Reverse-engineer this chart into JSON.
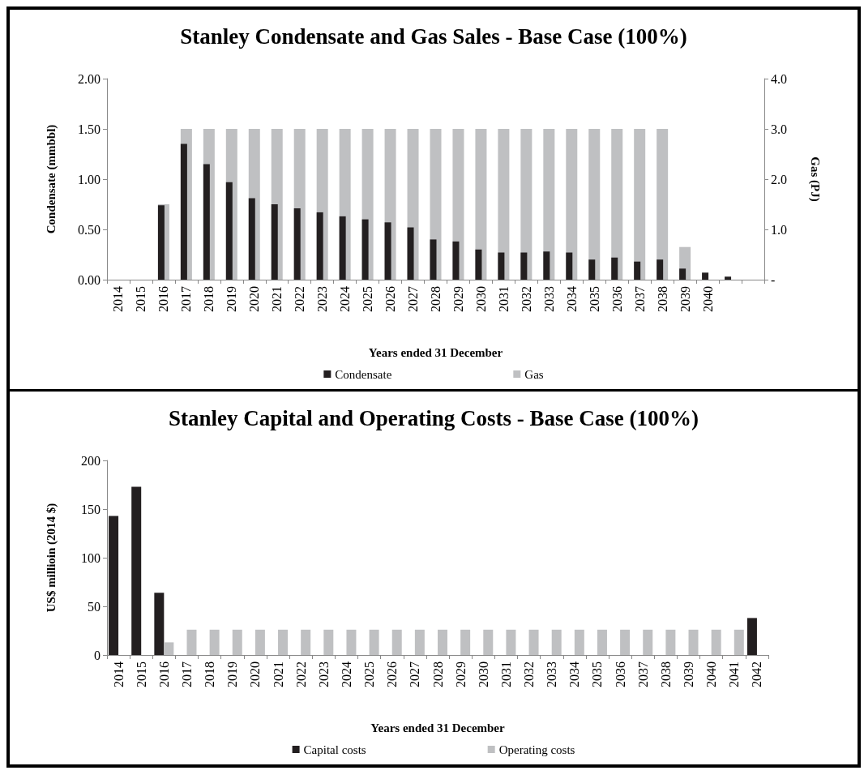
{
  "chart_data": [
    {
      "type": "bar",
      "title": "Stanley Condensate and Gas Sales - Base Case (100%)",
      "xlabel": "Years ended 31 December",
      "ylabel": "Condensate (mmbbl)",
      "y2label": "Gas (PJ)",
      "categories": [
        "2014",
        "2015",
        "2016",
        "2017",
        "2018",
        "2019",
        "2020",
        "2021",
        "2022",
        "2023",
        "2024",
        "2025",
        "2026",
        "2027",
        "2028",
        "2029",
        "2030",
        "2031",
        "2032",
        "2033",
        "2034",
        "2035",
        "2036",
        "2037",
        "2038",
        "2039",
        "2040",
        null,
        null
      ],
      "series": [
        {
          "name": "Condensate",
          "color": "#231f20",
          "values": [
            null,
            null,
            0.74,
            1.35,
            1.15,
            0.97,
            0.81,
            0.75,
            0.71,
            0.67,
            0.63,
            0.6,
            0.57,
            0.52,
            0.4,
            0.38,
            0.3,
            0.27,
            0.27,
            0.28,
            0.27,
            0.2,
            0.22,
            0.18,
            0.2,
            0.11,
            0.07,
            0.03,
            null
          ]
        },
        {
          "name": "Gas",
          "color": "#bfc0c2",
          "axis": "y2",
          "values": [
            null,
            null,
            1.5,
            3.0,
            3.0,
            3.0,
            3.0,
            3.0,
            3.0,
            3.0,
            3.0,
            3.0,
            3.0,
            3.0,
            3.0,
            3.0,
            3.0,
            3.0,
            3.0,
            3.0,
            3.0,
            3.0,
            3.0,
            3.0,
            3.0,
            0.65,
            null,
            null,
            null
          ]
        }
      ],
      "ylim": [
        0,
        2
      ],
      "yticks": [
        {
          "value": 0,
          "label": "0.00"
        },
        {
          "value": 0.5,
          "label": "0.50"
        },
        {
          "value": 1,
          "label": "1.00"
        },
        {
          "value": 1.5,
          "label": "1.50"
        },
        {
          "value": 2,
          "label": "2.00"
        }
      ],
      "y2lim": [
        0,
        4
      ],
      "y2ticks": [
        {
          "value": 0,
          "label": "-"
        },
        {
          "value": 1,
          "label": "1.0"
        },
        {
          "value": 2,
          "label": "2.0"
        },
        {
          "value": 3,
          "label": "3.0"
        },
        {
          "value": 4,
          "label": "4.0"
        }
      ],
      "grid": false,
      "legend": "bottom"
    },
    {
      "type": "bar",
      "title": "Stanley Capital and Operating Costs - Base Case (100%)",
      "xlabel": "Years ended 31 December",
      "ylabel": "US$ millioin (2014 $)",
      "categories": [
        "2014",
        "2015",
        "2016",
        "2017",
        "2018",
        "2019",
        "2020",
        "2021",
        "2022",
        "2023",
        "2024",
        "2025",
        "2026",
        "2027",
        "2028",
        "2029",
        "2030",
        "2031",
        "2032",
        "2033",
        "2034",
        "2035",
        "2036",
        "2037",
        "2038",
        "2039",
        "2040",
        "2041",
        "2042"
      ],
      "series": [
        {
          "name": "Capital costs",
          "color": "#231f20",
          "values": [
            143,
            173,
            64,
            null,
            null,
            null,
            null,
            null,
            null,
            null,
            null,
            null,
            null,
            null,
            null,
            null,
            null,
            null,
            null,
            null,
            null,
            null,
            null,
            null,
            null,
            null,
            null,
            null,
            38
          ]
        },
        {
          "name": "Operating costs",
          "color": "#bfc0c2",
          "values": [
            null,
            null,
            13,
            26,
            26,
            26,
            26,
            26,
            26,
            26,
            26,
            26,
            26,
            26,
            26,
            26,
            26,
            26,
            26,
            26,
            26,
            26,
            26,
            26,
            26,
            26,
            26,
            26,
            null
          ]
        }
      ],
      "ylim": [
        0,
        200
      ],
      "yticks": [
        0,
        50,
        100,
        150,
        200
      ],
      "grid": false,
      "legend": "bottom"
    }
  ]
}
